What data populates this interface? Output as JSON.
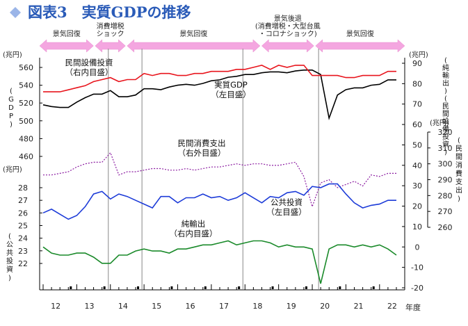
{
  "title": "図表3　実質GDPの推移",
  "period_arrows": [
    {
      "label": "景気回復",
      "from": 0,
      "to": 1.6
    },
    {
      "label": "消費増税\nショック",
      "from": 1.65,
      "to": 2.55
    },
    {
      "label": "景気回復",
      "from": 2.6,
      "to": 6.55
    },
    {
      "label": "景気後退\n(消費増税・大型台風\n・コロナショック)",
      "from": 6.6,
      "to": 8.15
    },
    {
      "label": "景気回復",
      "from": 8.2,
      "to": 10.85
    }
  ],
  "left_unit_top": "(兆円)",
  "left_unit_mid": "(兆円)",
  "right_unit_top": "(兆円)",
  "right_unit_mid": "(兆円)",
  "left_axis_gdp_label": "(GDP)",
  "left_axis_pub_label": "(公共投資)",
  "right_axis_label_top": "(純輸出)(民間設備投資)",
  "right_axis_label_mid": "(民間消費支出)",
  "x_axis_unit": "年度",
  "fiscal_years": [
    "12",
    "13",
    "14",
    "15",
    "16",
    "17",
    "18",
    "19",
    "20",
    "21",
    "22"
  ],
  "chart_data": {
    "type": "line",
    "x_quarters_start": "2012Q1",
    "axes": {
      "left_gdp": {
        "ticks": [
          460,
          480,
          500,
          520,
          540,
          560
        ],
        "range": [
          460,
          560
        ]
      },
      "left_public": {
        "ticks": [
          22,
          23,
          24,
          25,
          26,
          27,
          28
        ],
        "range": [
          22,
          28
        ]
      },
      "right_main": {
        "ticks": [
          -20,
          -10,
          0,
          10,
          20,
          30,
          40,
          50,
          60,
          70,
          80,
          90
        ],
        "range": [
          -20,
          90
        ]
      },
      "right_consumption": {
        "ticks": [
          260,
          270,
          280,
          290,
          300,
          310,
          320
        ],
        "range": [
          260,
          320
        ]
      }
    },
    "series": [
      {
        "name": "実質GDP",
        "label_text": "実質GDP\n（左目盛）",
        "axis": "left_gdp",
        "color": "#000000",
        "values": [
          518,
          516,
          515,
          515,
          521,
          526,
          530,
          530,
          534,
          527,
          527,
          529,
          536,
          536,
          535,
          538,
          540,
          541,
          540,
          542,
          545,
          546,
          549,
          550,
          552,
          552,
          554,
          555,
          555,
          554,
          556,
          557,
          557,
          552,
          503,
          529,
          535,
          537,
          537,
          540,
          541,
          546,
          546
        ]
      },
      {
        "name": "民間設備投資",
        "label_text": "民間設備投資\n（右内目盛）",
        "axis": "right_main",
        "color": "#e8141c",
        "values": [
          76,
          76,
          76,
          77,
          78,
          79,
          81,
          82,
          83,
          81,
          82,
          82,
          85,
          84,
          85,
          85,
          84,
          84,
          85,
          85,
          86,
          86,
          86,
          87,
          87,
          88,
          89,
          87,
          89,
          88,
          89,
          89,
          84,
          84,
          84,
          84,
          83,
          83,
          84,
          84,
          84,
          86,
          86
        ]
      },
      {
        "name": "民間消費支出",
        "label_text": "民間消費支出\n（右外目盛）",
        "axis": "right_consumption",
        "color": "#8a1aa0",
        "values": [
          293,
          293,
          294,
          295,
          298,
          300,
          301,
          301,
          307,
          293,
          295,
          295,
          296,
          297,
          297,
          296,
          296,
          297,
          296,
          297,
          298,
          298,
          299,
          300,
          299,
          300,
          300,
          299,
          299,
          300,
          301,
          292,
          273,
          288,
          290,
          285,
          287,
          289,
          286,
          293,
          292,
          294,
          294
        ]
      },
      {
        "name": "公共投資",
        "label_text": "公共投資\n（左目盛）",
        "axis": "left_public",
        "color": "#1c3bd8",
        "values": [
          26.0,
          26.3,
          25.9,
          25.5,
          25.8,
          26.5,
          27.5,
          27.7,
          27.1,
          27.5,
          27.3,
          27.0,
          26.7,
          26.4,
          27.3,
          27.3,
          26.8,
          27.2,
          27.2,
          27.5,
          27.2,
          27.3,
          27.0,
          27.2,
          27.6,
          27.2,
          26.8,
          27.3,
          27.2,
          27.6,
          27.7,
          27.4,
          28.1,
          28.0,
          28.3,
          28.3,
          27.5,
          26.8,
          26.4,
          26.6,
          26.7,
          27.0,
          27.0
        ]
      },
      {
        "name": "純輸出",
        "label_text": "純輸出\n（右内目盛）",
        "axis": "right_main",
        "color": "#1a8a2a",
        "values": [
          0,
          -3,
          -4,
          -4,
          -3,
          -3,
          -5,
          -8,
          -8,
          -4,
          -4,
          -2,
          -1,
          -2,
          -2,
          -3,
          -1,
          -1,
          0,
          1,
          1,
          2,
          3,
          1,
          2,
          3,
          3,
          2,
          0,
          1,
          0,
          0,
          -1,
          -18,
          -1,
          1,
          1,
          0,
          1,
          0,
          1,
          -1,
          -4
        ]
      }
    ],
    "event_lines_x": [
      8,
      12,
      24,
      33
    ],
    "grid": false,
    "legend": "inline labels"
  }
}
